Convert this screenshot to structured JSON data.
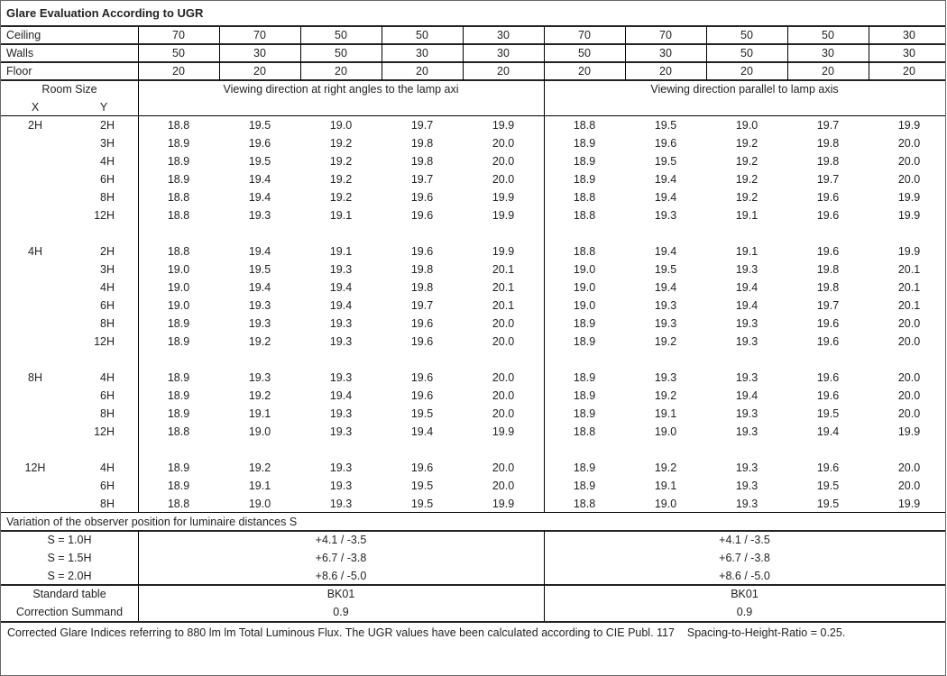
{
  "title": "Glare Evaluation According to UGR",
  "reflectances": [
    {
      "label": "Ceiling",
      "values": [
        "70",
        "70",
        "50",
        "50",
        "30",
        "70",
        "70",
        "50",
        "50",
        "30"
      ]
    },
    {
      "label": "Walls",
      "values": [
        "50",
        "30",
        "50",
        "30",
        "30",
        "50",
        "30",
        "50",
        "30",
        "30"
      ]
    },
    {
      "label": "Floor",
      "values": [
        "20",
        "20",
        "20",
        "20",
        "20",
        "20",
        "20",
        "20",
        "20",
        "20"
      ]
    }
  ],
  "header": {
    "room_size": "Room Size",
    "x": "X",
    "y": "Y",
    "direction_right_angles": "Viewing direction at right angles to the lamp axi",
    "direction_parallel": "Viewing direction parallel to lamp axis"
  },
  "groups": [
    {
      "x": "2H",
      "rows": [
        {
          "y": "2H",
          "values": [
            "18.8",
            "19.5",
            "19.0",
            "19.7",
            "19.9",
            "18.8",
            "19.5",
            "19.0",
            "19.7",
            "19.9"
          ]
        },
        {
          "y": "3H",
          "values": [
            "18.9",
            "19.6",
            "19.2",
            "19.8",
            "20.0",
            "18.9",
            "19.6",
            "19.2",
            "19.8",
            "20.0"
          ]
        },
        {
          "y": "4H",
          "values": [
            "18.9",
            "19.5",
            "19.2",
            "19.8",
            "20.0",
            "18.9",
            "19.5",
            "19.2",
            "19.8",
            "20.0"
          ]
        },
        {
          "y": "6H",
          "values": [
            "18.9",
            "19.4",
            "19.2",
            "19.7",
            "20.0",
            "18.9",
            "19.4",
            "19.2",
            "19.7",
            "20.0"
          ]
        },
        {
          "y": "8H",
          "values": [
            "18.8",
            "19.4",
            "19.2",
            "19.6",
            "19.9",
            "18.8",
            "19.4",
            "19.2",
            "19.6",
            "19.9"
          ]
        },
        {
          "y": "12H",
          "values": [
            "18.8",
            "19.3",
            "19.1",
            "19.6",
            "19.9",
            "18.8",
            "19.3",
            "19.1",
            "19.6",
            "19.9"
          ]
        }
      ]
    },
    {
      "x": "4H",
      "rows": [
        {
          "y": "2H",
          "values": [
            "18.8",
            "19.4",
            "19.1",
            "19.6",
            "19.9",
            "18.8",
            "19.4",
            "19.1",
            "19.6",
            "19.9"
          ]
        },
        {
          "y": "3H",
          "values": [
            "19.0",
            "19.5",
            "19.3",
            "19.8",
            "20.1",
            "19.0",
            "19.5",
            "19.3",
            "19.8",
            "20.1"
          ]
        },
        {
          "y": "4H",
          "values": [
            "19.0",
            "19.4",
            "19.4",
            "19.8",
            "20.1",
            "19.0",
            "19.4",
            "19.4",
            "19.8",
            "20.1"
          ]
        },
        {
          "y": "6H",
          "values": [
            "19.0",
            "19.3",
            "19.4",
            "19.7",
            "20.1",
            "19.0",
            "19.3",
            "19.4",
            "19.7",
            "20.1"
          ]
        },
        {
          "y": "8H",
          "values": [
            "18.9",
            "19.3",
            "19.3",
            "19.6",
            "20.0",
            "18.9",
            "19.3",
            "19.3",
            "19.6",
            "20.0"
          ]
        },
        {
          "y": "12H",
          "values": [
            "18.9",
            "19.2",
            "19.3",
            "19.6",
            "20.0",
            "18.9",
            "19.2",
            "19.3",
            "19.6",
            "20.0"
          ]
        }
      ]
    },
    {
      "x": "8H",
      "rows": [
        {
          "y": "4H",
          "values": [
            "18.9",
            "19.3",
            "19.3",
            "19.6",
            "20.0",
            "18.9",
            "19.3",
            "19.3",
            "19.6",
            "20.0"
          ]
        },
        {
          "y": "6H",
          "values": [
            "18.9",
            "19.2",
            "19.4",
            "19.6",
            "20.0",
            "18.9",
            "19.2",
            "19.4",
            "19.6",
            "20.0"
          ]
        },
        {
          "y": "8H",
          "values": [
            "18.9",
            "19.1",
            "19.3",
            "19.5",
            "20.0",
            "18.9",
            "19.1",
            "19.3",
            "19.5",
            "20.0"
          ]
        },
        {
          "y": "12H",
          "values": [
            "18.8",
            "19.0",
            "19.3",
            "19.4",
            "19.9",
            "18.8",
            "19.0",
            "19.3",
            "19.4",
            "19.9"
          ]
        }
      ]
    },
    {
      "x": "12H",
      "rows": [
        {
          "y": "4H",
          "values": [
            "18.9",
            "19.2",
            "19.3",
            "19.6",
            "20.0",
            "18.9",
            "19.2",
            "19.3",
            "19.6",
            "20.0"
          ]
        },
        {
          "y": "6H",
          "values": [
            "18.9",
            "19.1",
            "19.3",
            "19.5",
            "20.0",
            "18.9",
            "19.1",
            "19.3",
            "19.5",
            "20.0"
          ]
        },
        {
          "y": "8H",
          "values": [
            "18.8",
            "19.0",
            "19.3",
            "19.5",
            "19.9",
            "18.8",
            "19.0",
            "19.3",
            "19.5",
            "19.9"
          ]
        }
      ]
    }
  ],
  "variation": {
    "heading": "Variation of the observer position for luminaire distances S",
    "rows": [
      {
        "label": "S = 1.0H",
        "left": "+4.1 / -3.5",
        "right": "+4.1 / -3.5"
      },
      {
        "label": "S = 1.5H",
        "left": "+6.7 / -3.8",
        "right": "+6.7 / -3.8"
      },
      {
        "label": "S = 2.0H",
        "left": "+8.6 / -5.0",
        "right": "+8.6 / -5.0"
      }
    ]
  },
  "standard": [
    {
      "label": "Standard table",
      "left": "BK01",
      "right": "BK01"
    },
    {
      "label": "Correction Summand",
      "left": "0.9",
      "right": "0.9"
    }
  ],
  "footnote": "Corrected Glare Indices referring to 880 lm lm Total Luminous Flux. The UGR values have been calculated according to CIE Publ. 117    Spacing-to-Height-Ratio = 0.25."
}
